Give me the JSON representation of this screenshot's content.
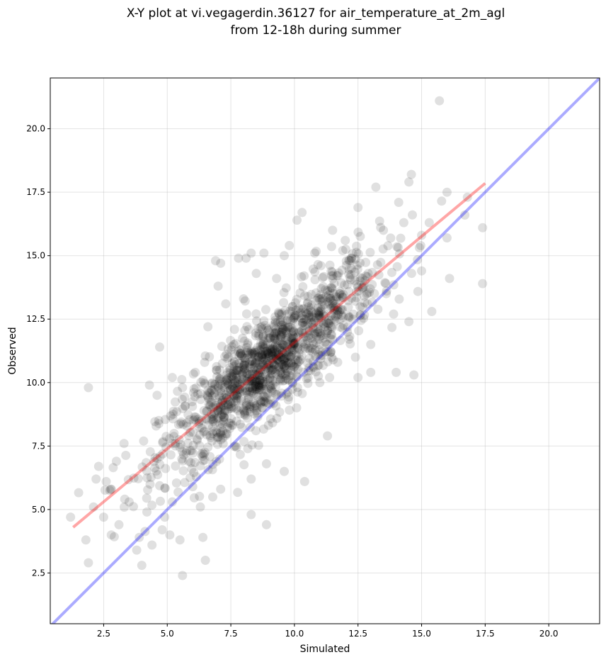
{
  "chart_data": {
    "type": "scatter",
    "title_line1": "X-Y plot at vi.vegagerdin.36127 for air_temperature_at_2m_agl",
    "title_line2": "from 12-18h during summer",
    "xlabel": "Simulated",
    "ylabel": "Observed",
    "xlim": [
      0.4,
      22.0
    ],
    "ylim": [
      0.5,
      22.0
    ],
    "xticks": [
      2.5,
      5.0,
      7.5,
      10.0,
      12.5,
      15.0,
      17.5,
      20.0
    ],
    "yticks": [
      2.5,
      5.0,
      7.5,
      10.0,
      12.5,
      15.0,
      17.5,
      20.0
    ],
    "xtick_labels": [
      "2.5",
      "5.0",
      "7.5",
      "10.0",
      "12.5",
      "15.0",
      "17.5",
      "20.0"
    ],
    "ytick_labels": [
      "2.5",
      "5.0",
      "7.5",
      "10.0",
      "12.5",
      "15.0",
      "17.5",
      "20.0"
    ],
    "grid": true,
    "point_color": "#000000",
    "point_alpha": 0.12,
    "identity_line": {
      "color": "#0000ff",
      "alpha": 0.33,
      "from": [
        0.4,
        0.4
      ],
      "to": [
        22.0,
        22.0
      ]
    },
    "regression_line": {
      "color": "#ff0000",
      "alpha": 0.35,
      "from": [
        1.3,
        4.3
      ],
      "to": [
        17.5,
        17.85
      ]
    },
    "outliers": [
      [
        15.7,
        21.1
      ],
      [
        1.2,
        4.7
      ],
      [
        1.9,
        9.8
      ],
      [
        1.9,
        2.9
      ],
      [
        1.8,
        3.8
      ],
      [
        2.1,
        5.1
      ],
      [
        2.3,
        6.7
      ],
      [
        2.2,
        6.2
      ],
      [
        2.8,
        4.0
      ],
      [
        2.5,
        4.7
      ],
      [
        2.6,
        6.1
      ],
      [
        3.1,
        4.4
      ],
      [
        2.8,
        5.8
      ],
      [
        3.0,
        6.9
      ],
      [
        3.3,
        7.6
      ],
      [
        3.8,
        3.4
      ],
      [
        4.0,
        2.8
      ],
      [
        3.9,
        3.9
      ],
      [
        4.4,
        3.6
      ],
      [
        4.8,
        4.2
      ],
      [
        5.1,
        4.0
      ],
      [
        5.5,
        3.8
      ],
      [
        5.6,
        2.4
      ],
      [
        6.5,
        3.0
      ],
      [
        6.4,
        3.9
      ],
      [
        6.3,
        5.1
      ],
      [
        4.7,
        11.4
      ],
      [
        4.3,
        9.9
      ],
      [
        4.6,
        9.5
      ],
      [
        5.2,
        10.2
      ],
      [
        5.6,
        9.8
      ],
      [
        6.1,
        10.4
      ],
      [
        6.6,
        12.2
      ],
      [
        6.9,
        14.8
      ],
      [
        7.1,
        14.7
      ],
      [
        7.0,
        13.8
      ],
      [
        7.3,
        13.1
      ],
      [
        7.8,
        14.9
      ],
      [
        8.1,
        14.9
      ],
      [
        8.3,
        15.1
      ],
      [
        8.8,
        15.1
      ],
      [
        9.6,
        15.0
      ],
      [
        8.0,
        13.3
      ],
      [
        8.5,
        14.3
      ],
      [
        9.3,
        14.1
      ],
      [
        9.8,
        15.4
      ],
      [
        10.1,
        16.4
      ],
      [
        10.3,
        16.7
      ],
      [
        11.5,
        16.0
      ],
      [
        12.5,
        16.9
      ],
      [
        13.2,
        17.7
      ],
      [
        14.1,
        17.1
      ],
      [
        14.6,
        18.2
      ],
      [
        14.5,
        17.9
      ],
      [
        15.3,
        16.3
      ],
      [
        16.0,
        17.5
      ],
      [
        16.8,
        17.3
      ],
      [
        17.4,
        16.1
      ],
      [
        17.4,
        13.9
      ],
      [
        16.1,
        14.1
      ],
      [
        15.4,
        12.8
      ],
      [
        14.7,
        10.3
      ],
      [
        14.0,
        10.4
      ],
      [
        13.0,
        10.4
      ],
      [
        12.5,
        10.2
      ],
      [
        11.3,
        7.9
      ],
      [
        10.4,
        6.1
      ],
      [
        9.6,
        6.5
      ],
      [
        8.3,
        4.8
      ],
      [
        8.9,
        4.4
      ],
      [
        8.3,
        6.2
      ],
      [
        8.9,
        6.8
      ],
      [
        7.1,
        5.8
      ],
      [
        6.0,
        5.9
      ],
      [
        5.2,
        5.3
      ],
      [
        4.9,
        4.7
      ],
      [
        4.2,
        4.9
      ],
      [
        3.5,
        5.3
      ],
      [
        12.0,
        15.6
      ],
      [
        13.5,
        16.0
      ],
      [
        14.3,
        16.3
      ],
      [
        15.0,
        15.8
      ],
      [
        16.7,
        16.6
      ],
      [
        16.0,
        15.7
      ],
      [
        15.0,
        14.4
      ],
      [
        14.5,
        12.4
      ],
      [
        13.9,
        12.7
      ],
      [
        13.0,
        11.5
      ],
      [
        12.4,
        11.0
      ],
      [
        11.7,
        10.8
      ],
      [
        11.0,
        10.0
      ],
      [
        12.9,
        14.3
      ],
      [
        11.9,
        15.2
      ],
      [
        10.8,
        15.1
      ],
      [
        9.4,
        12.0
      ],
      [
        7.4,
        11.0
      ]
    ]
  }
}
